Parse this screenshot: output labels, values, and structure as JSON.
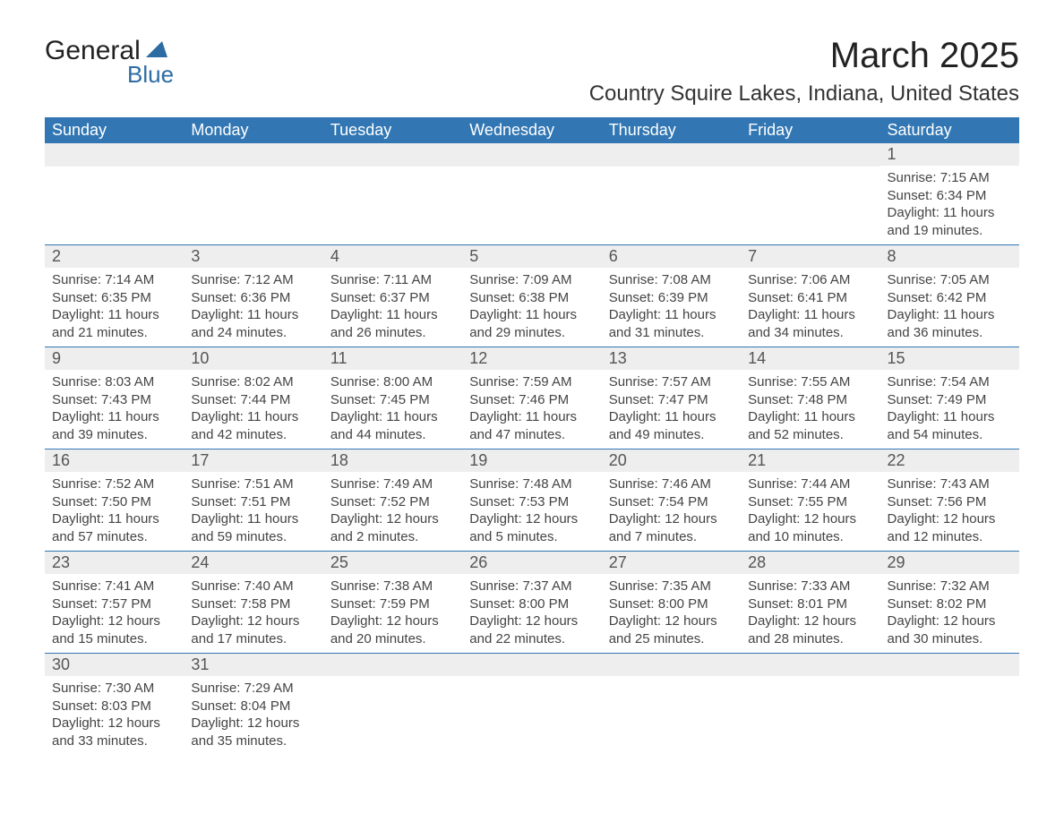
{
  "logo": {
    "text_general": "General",
    "text_blue": "Blue",
    "sail_color": "#2d6ca2"
  },
  "title": "March 2025",
  "location": "Country Squire Lakes, Indiana, United States",
  "colors": {
    "header_bg": "#3277b3",
    "header_text": "#ffffff",
    "daynum_bg": "#eeeeee",
    "daynum_text": "#555555",
    "border": "#3277b3",
    "body_text": "#444444"
  },
  "day_headers": [
    "Sunday",
    "Monday",
    "Tuesday",
    "Wednesday",
    "Thursday",
    "Friday",
    "Saturday"
  ],
  "weeks": [
    [
      null,
      null,
      null,
      null,
      null,
      null,
      {
        "n": "1",
        "sunrise": "Sunrise: 7:15 AM",
        "sunset": "Sunset: 6:34 PM",
        "daylight": "Daylight: 11 hours and 19 minutes."
      }
    ],
    [
      {
        "n": "2",
        "sunrise": "Sunrise: 7:14 AM",
        "sunset": "Sunset: 6:35 PM",
        "daylight": "Daylight: 11 hours and 21 minutes."
      },
      {
        "n": "3",
        "sunrise": "Sunrise: 7:12 AM",
        "sunset": "Sunset: 6:36 PM",
        "daylight": "Daylight: 11 hours and 24 minutes."
      },
      {
        "n": "4",
        "sunrise": "Sunrise: 7:11 AM",
        "sunset": "Sunset: 6:37 PM",
        "daylight": "Daylight: 11 hours and 26 minutes."
      },
      {
        "n": "5",
        "sunrise": "Sunrise: 7:09 AM",
        "sunset": "Sunset: 6:38 PM",
        "daylight": "Daylight: 11 hours and 29 minutes."
      },
      {
        "n": "6",
        "sunrise": "Sunrise: 7:08 AM",
        "sunset": "Sunset: 6:39 PM",
        "daylight": "Daylight: 11 hours and 31 minutes."
      },
      {
        "n": "7",
        "sunrise": "Sunrise: 7:06 AM",
        "sunset": "Sunset: 6:41 PM",
        "daylight": "Daylight: 11 hours and 34 minutes."
      },
      {
        "n": "8",
        "sunrise": "Sunrise: 7:05 AM",
        "sunset": "Sunset: 6:42 PM",
        "daylight": "Daylight: 11 hours and 36 minutes."
      }
    ],
    [
      {
        "n": "9",
        "sunrise": "Sunrise: 8:03 AM",
        "sunset": "Sunset: 7:43 PM",
        "daylight": "Daylight: 11 hours and 39 minutes."
      },
      {
        "n": "10",
        "sunrise": "Sunrise: 8:02 AM",
        "sunset": "Sunset: 7:44 PM",
        "daylight": "Daylight: 11 hours and 42 minutes."
      },
      {
        "n": "11",
        "sunrise": "Sunrise: 8:00 AM",
        "sunset": "Sunset: 7:45 PM",
        "daylight": "Daylight: 11 hours and 44 minutes."
      },
      {
        "n": "12",
        "sunrise": "Sunrise: 7:59 AM",
        "sunset": "Sunset: 7:46 PM",
        "daylight": "Daylight: 11 hours and 47 minutes."
      },
      {
        "n": "13",
        "sunrise": "Sunrise: 7:57 AM",
        "sunset": "Sunset: 7:47 PM",
        "daylight": "Daylight: 11 hours and 49 minutes."
      },
      {
        "n": "14",
        "sunrise": "Sunrise: 7:55 AM",
        "sunset": "Sunset: 7:48 PM",
        "daylight": "Daylight: 11 hours and 52 minutes."
      },
      {
        "n": "15",
        "sunrise": "Sunrise: 7:54 AM",
        "sunset": "Sunset: 7:49 PM",
        "daylight": "Daylight: 11 hours and 54 minutes."
      }
    ],
    [
      {
        "n": "16",
        "sunrise": "Sunrise: 7:52 AM",
        "sunset": "Sunset: 7:50 PM",
        "daylight": "Daylight: 11 hours and 57 minutes."
      },
      {
        "n": "17",
        "sunrise": "Sunrise: 7:51 AM",
        "sunset": "Sunset: 7:51 PM",
        "daylight": "Daylight: 11 hours and 59 minutes."
      },
      {
        "n": "18",
        "sunrise": "Sunrise: 7:49 AM",
        "sunset": "Sunset: 7:52 PM",
        "daylight": "Daylight: 12 hours and 2 minutes."
      },
      {
        "n": "19",
        "sunrise": "Sunrise: 7:48 AM",
        "sunset": "Sunset: 7:53 PM",
        "daylight": "Daylight: 12 hours and 5 minutes."
      },
      {
        "n": "20",
        "sunrise": "Sunrise: 7:46 AM",
        "sunset": "Sunset: 7:54 PM",
        "daylight": "Daylight: 12 hours and 7 minutes."
      },
      {
        "n": "21",
        "sunrise": "Sunrise: 7:44 AM",
        "sunset": "Sunset: 7:55 PM",
        "daylight": "Daylight: 12 hours and 10 minutes."
      },
      {
        "n": "22",
        "sunrise": "Sunrise: 7:43 AM",
        "sunset": "Sunset: 7:56 PM",
        "daylight": "Daylight: 12 hours and 12 minutes."
      }
    ],
    [
      {
        "n": "23",
        "sunrise": "Sunrise: 7:41 AM",
        "sunset": "Sunset: 7:57 PM",
        "daylight": "Daylight: 12 hours and 15 minutes."
      },
      {
        "n": "24",
        "sunrise": "Sunrise: 7:40 AM",
        "sunset": "Sunset: 7:58 PM",
        "daylight": "Daylight: 12 hours and 17 minutes."
      },
      {
        "n": "25",
        "sunrise": "Sunrise: 7:38 AM",
        "sunset": "Sunset: 7:59 PM",
        "daylight": "Daylight: 12 hours and 20 minutes."
      },
      {
        "n": "26",
        "sunrise": "Sunrise: 7:37 AM",
        "sunset": "Sunset: 8:00 PM",
        "daylight": "Daylight: 12 hours and 22 minutes."
      },
      {
        "n": "27",
        "sunrise": "Sunrise: 7:35 AM",
        "sunset": "Sunset: 8:00 PM",
        "daylight": "Daylight: 12 hours and 25 minutes."
      },
      {
        "n": "28",
        "sunrise": "Sunrise: 7:33 AM",
        "sunset": "Sunset: 8:01 PM",
        "daylight": "Daylight: 12 hours and 28 minutes."
      },
      {
        "n": "29",
        "sunrise": "Sunrise: 7:32 AM",
        "sunset": "Sunset: 8:02 PM",
        "daylight": "Daylight: 12 hours and 30 minutes."
      }
    ],
    [
      {
        "n": "30",
        "sunrise": "Sunrise: 7:30 AM",
        "sunset": "Sunset: 8:03 PM",
        "daylight": "Daylight: 12 hours and 33 minutes."
      },
      {
        "n": "31",
        "sunrise": "Sunrise: 7:29 AM",
        "sunset": "Sunset: 8:04 PM",
        "daylight": "Daylight: 12 hours and 35 minutes."
      },
      null,
      null,
      null,
      null,
      null
    ]
  ]
}
